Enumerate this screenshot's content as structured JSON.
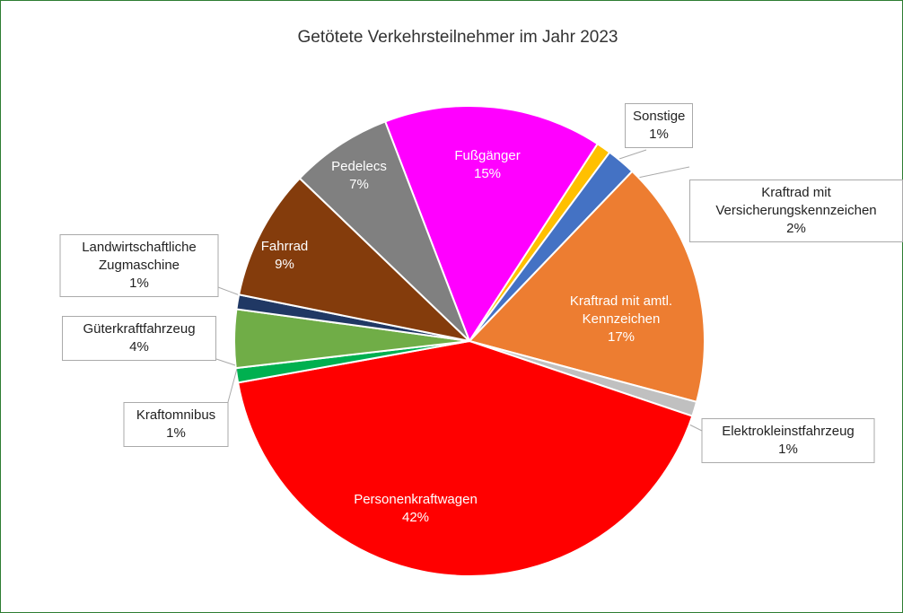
{
  "chart_data": {
    "type": "pie",
    "title": "Getötete Verkehrsteilnehmer im Jahr 2023",
    "categories": [
      "Fußgänger",
      "Sonstige",
      "Kraftrad mit Versicherungskennzeichen",
      "Kraftrad mit amtl. Kennzeichen",
      "Elektrokleinstfahrzeug",
      "Personenkraftwagen",
      "Kraftomnibus",
      "Güterkraftfahrzeug",
      "Landwirtschaftliche Zugmaschine",
      "Fahrrad",
      "Pedelecs"
    ],
    "values": [
      15,
      1,
      2,
      17,
      1,
      42,
      1,
      4,
      1,
      9,
      7
    ],
    "value_labels": [
      "15%",
      "1%",
      "2%",
      "17%",
      "1%",
      "42%",
      "1%",
      "4%",
      "1%",
      "9%",
      "7%"
    ],
    "colors": [
      "#ff00ff",
      "#ffc000",
      "#4472c4",
      "#ed7d31",
      "#c0c0c0",
      "#ff0000",
      "#00b050",
      "#70ad47",
      "#203864",
      "#843c0c",
      "#808080"
    ]
  }
}
